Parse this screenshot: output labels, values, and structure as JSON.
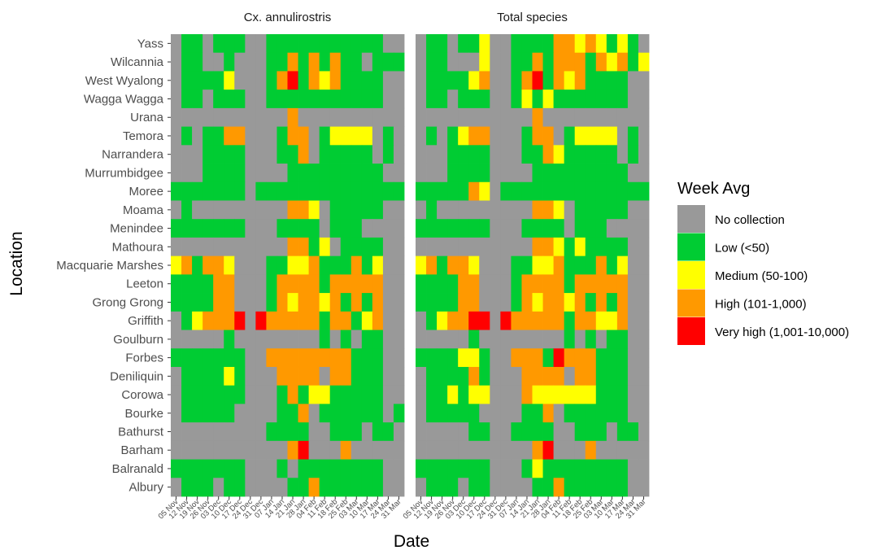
{
  "chart_data": {
    "type": "heatmap",
    "xlabel": "Date",
    "ylabel": "Location",
    "dates": [
      "05 Nov",
      "12 Nov",
      "19 Nov",
      "26 Nov",
      "03 Dec",
      "10 Dec",
      "17 Dec",
      "24 Dec",
      "31 Dec",
      "07 Jan",
      "14 Jan",
      "21 Jan",
      "28 Jan",
      "04 Feb",
      "11 Feb",
      "18 Feb",
      "25 Feb",
      "03 Mar",
      "10 Mar",
      "17 Mar",
      "24 Mar",
      "31 Mar"
    ],
    "tick_labels": [
      "05 Nov",
      "12 Nov",
      "19 Nov",
      "26 Nov",
      "03 Dec",
      "10 Dec",
      "17 Dec",
      "24 Dec",
      "31 Dec",
      "07 Jan",
      "14 Jan",
      "21 Jan",
      "28 Jan",
      "04 Feb",
      "11 Feb",
      "18 Feb",
      "25 Feb",
      "03 Mar",
      "10 Mar",
      "17 Mar",
      "24 Mar",
      "31 Mar"
    ],
    "locations": [
      "Yass",
      "Wilcannia",
      "West Wyalong",
      "Wagga Wagga",
      "Urana",
      "Temora",
      "Narrandera",
      "Murrumbidgee",
      "Moree",
      "Moama",
      "Menindee",
      "Mathoura",
      "Macquarie Marshes",
      "Leeton",
      "Grong Grong",
      "Griffith",
      "Goulburn",
      "Forbes",
      "Deniliquin",
      "Corowa",
      "Bourke",
      "Bathurst",
      "Barham",
      "Balranald",
      "Albury"
    ],
    "legend": {
      "title": "Week Avg",
      "position": "right",
      "levels": [
        {
          "code": 0,
          "label": "No collection",
          "color": "#999999"
        },
        {
          "code": 1,
          "label": "Low (<50)",
          "color": "#00cc33"
        },
        {
          "code": 2,
          "label": "Medium (50-100)",
          "color": "#ffff00"
        },
        {
          "code": 3,
          "label": "High (101-1,000)",
          "color": "#ff9900"
        },
        {
          "code": 4,
          "label": "Very high (1,001-10,000)",
          "color": "#ff0000"
        }
      ]
    },
    "panels": [
      {
        "title": "Cx. annulirostris",
        "grid": [
          [
            0,
            1,
            1,
            0,
            1,
            1,
            1,
            0,
            0,
            1,
            1,
            1,
            1,
            1,
            1,
            1,
            1,
            1,
            1,
            1,
            0,
            0
          ],
          [
            0,
            1,
            1,
            0,
            0,
            1,
            0,
            0,
            0,
            1,
            1,
            3,
            1,
            3,
            1,
            3,
            1,
            1,
            0,
            1,
            1,
            1
          ],
          [
            0,
            1,
            1,
            1,
            1,
            2,
            0,
            0,
            0,
            1,
            3,
            4,
            1,
            3,
            2,
            3,
            1,
            1,
            1,
            1,
            0,
            0
          ],
          [
            0,
            1,
            1,
            0,
            1,
            1,
            1,
            0,
            0,
            1,
            1,
            1,
            1,
            1,
            1,
            1,
            1,
            1,
            1,
            1,
            0,
            0
          ],
          [
            0,
            0,
            0,
            0,
            0,
            0,
            0,
            0,
            0,
            0,
            0,
            3,
            0,
            0,
            0,
            0,
            0,
            0,
            0,
            0,
            0,
            0
          ],
          [
            0,
            1,
            0,
            1,
            1,
            3,
            3,
            0,
            0,
            0,
            1,
            3,
            3,
            0,
            1,
            2,
            2,
            2,
            2,
            0,
            1,
            0
          ],
          [
            0,
            0,
            0,
            1,
            1,
            1,
            1,
            0,
            0,
            0,
            1,
            1,
            3,
            0,
            1,
            1,
            1,
            1,
            1,
            0,
            1,
            0
          ],
          [
            0,
            0,
            0,
            1,
            1,
            1,
            1,
            0,
            0,
            0,
            0,
            1,
            1,
            1,
            1,
            1,
            1,
            1,
            1,
            1,
            0,
            0
          ],
          [
            1,
            1,
            1,
            1,
            1,
            1,
            1,
            0,
            1,
            1,
            1,
            1,
            1,
            1,
            1,
            1,
            1,
            1,
            1,
            1,
            1,
            1
          ],
          [
            0,
            1,
            0,
            0,
            0,
            0,
            0,
            0,
            0,
            0,
            0,
            3,
            3,
            2,
            0,
            1,
            1,
            1,
            1,
            1,
            0,
            0
          ],
          [
            1,
            1,
            1,
            1,
            1,
            1,
            1,
            0,
            0,
            0,
            1,
            1,
            1,
            1,
            0,
            1,
            1,
            1,
            0,
            0,
            0,
            0
          ],
          [
            0,
            0,
            0,
            0,
            0,
            0,
            0,
            0,
            0,
            0,
            0,
            3,
            3,
            1,
            2,
            0,
            1,
            1,
            1,
            1,
            0,
            0
          ],
          [
            2,
            3,
            1,
            3,
            3,
            2,
            0,
            0,
            0,
            1,
            1,
            2,
            2,
            3,
            1,
            1,
            1,
            3,
            1,
            2,
            0,
            0
          ],
          [
            1,
            1,
            1,
            1,
            3,
            3,
            0,
            0,
            0,
            1,
            3,
            3,
            3,
            3,
            1,
            3,
            3,
            3,
            3,
            3,
            0,
            0
          ],
          [
            1,
            1,
            1,
            1,
            3,
            3,
            0,
            0,
            0,
            1,
            3,
            2,
            3,
            3,
            2,
            3,
            1,
            3,
            1,
            3,
            0,
            0
          ],
          [
            0,
            1,
            2,
            3,
            3,
            3,
            4,
            0,
            4,
            3,
            3,
            3,
            3,
            3,
            1,
            3,
            3,
            1,
            2,
            3,
            0,
            0
          ],
          [
            0,
            0,
            0,
            0,
            0,
            1,
            0,
            0,
            0,
            0,
            0,
            0,
            0,
            0,
            1,
            0,
            1,
            0,
            1,
            1,
            0,
            0
          ],
          [
            1,
            1,
            1,
            1,
            1,
            1,
            1,
            0,
            0,
            3,
            3,
            3,
            3,
            3,
            3,
            3,
            3,
            1,
            1,
            1,
            0,
            0
          ],
          [
            0,
            1,
            1,
            1,
            1,
            2,
            1,
            0,
            0,
            0,
            3,
            3,
            3,
            3,
            0,
            3,
            3,
            1,
            1,
            1,
            0,
            0
          ],
          [
            0,
            1,
            1,
            1,
            1,
            1,
            1,
            0,
            0,
            0,
            1,
            3,
            1,
            2,
            2,
            1,
            1,
            1,
            1,
            1,
            0,
            0
          ],
          [
            0,
            1,
            1,
            1,
            1,
            1,
            0,
            0,
            0,
            0,
            1,
            1,
            3,
            0,
            1,
            1,
            1,
            1,
            1,
            1,
            0,
            1
          ],
          [
            0,
            0,
            0,
            0,
            0,
            0,
            0,
            0,
            0,
            1,
            1,
            1,
            1,
            0,
            0,
            1,
            1,
            1,
            0,
            1,
            1,
            0
          ],
          [
            0,
            0,
            0,
            0,
            0,
            0,
            0,
            0,
            0,
            0,
            0,
            3,
            4,
            0,
            0,
            0,
            3,
            0,
            0,
            0,
            0,
            0
          ],
          [
            1,
            1,
            1,
            1,
            1,
            1,
            1,
            0,
            0,
            0,
            1,
            0,
            1,
            1,
            1,
            1,
            1,
            1,
            1,
            1,
            0,
            0
          ],
          [
            0,
            1,
            1,
            1,
            0,
            1,
            1,
            0,
            0,
            0,
            0,
            1,
            1,
            3,
            1,
            1,
            1,
            1,
            1,
            1,
            0,
            0
          ]
        ]
      },
      {
        "title": "Total species",
        "grid": [
          [
            0,
            1,
            1,
            0,
            1,
            1,
            2,
            0,
            0,
            1,
            1,
            1,
            1,
            3,
            3,
            2,
            3,
            2,
            1,
            2,
            1,
            0
          ],
          [
            0,
            1,
            1,
            0,
            0,
            0,
            2,
            0,
            0,
            1,
            1,
            3,
            1,
            3,
            3,
            3,
            1,
            3,
            2,
            3,
            1,
            2
          ],
          [
            0,
            1,
            1,
            1,
            1,
            2,
            3,
            0,
            0,
            1,
            3,
            4,
            1,
            3,
            2,
            3,
            1,
            1,
            1,
            1,
            0,
            0
          ],
          [
            0,
            1,
            1,
            0,
            1,
            1,
            1,
            0,
            0,
            1,
            2,
            1,
            2,
            1,
            1,
            1,
            1,
            1,
            1,
            1,
            0,
            0
          ],
          [
            0,
            0,
            0,
            0,
            0,
            0,
            0,
            0,
            0,
            0,
            0,
            3,
            0,
            0,
            0,
            0,
            0,
            0,
            0,
            0,
            0,
            0
          ],
          [
            0,
            1,
            0,
            1,
            2,
            3,
            3,
            0,
            0,
            0,
            1,
            3,
            3,
            0,
            1,
            2,
            2,
            2,
            2,
            0,
            1,
            0
          ],
          [
            0,
            0,
            0,
            1,
            1,
            1,
            1,
            0,
            0,
            0,
            1,
            1,
            3,
            2,
            1,
            1,
            1,
            1,
            1,
            0,
            1,
            0
          ],
          [
            0,
            0,
            0,
            1,
            1,
            1,
            1,
            0,
            0,
            0,
            0,
            1,
            1,
            1,
            1,
            1,
            1,
            1,
            1,
            1,
            0,
            0
          ],
          [
            1,
            1,
            1,
            1,
            1,
            3,
            2,
            0,
            1,
            1,
            1,
            1,
            1,
            1,
            1,
            1,
            1,
            1,
            1,
            1,
            1,
            1
          ],
          [
            0,
            1,
            0,
            0,
            0,
            0,
            0,
            0,
            0,
            0,
            0,
            3,
            3,
            2,
            0,
            1,
            1,
            1,
            1,
            1,
            0,
            0
          ],
          [
            1,
            1,
            1,
            1,
            1,
            1,
            1,
            0,
            0,
            0,
            1,
            1,
            1,
            1,
            0,
            1,
            1,
            1,
            0,
            0,
            0,
            0
          ],
          [
            0,
            0,
            0,
            0,
            0,
            0,
            0,
            0,
            0,
            0,
            0,
            3,
            3,
            2,
            1,
            2,
            1,
            1,
            1,
            1,
            0,
            0
          ],
          [
            2,
            3,
            1,
            3,
            3,
            2,
            0,
            0,
            0,
            1,
            1,
            2,
            2,
            3,
            1,
            1,
            1,
            3,
            1,
            2,
            0,
            0
          ],
          [
            1,
            1,
            1,
            1,
            3,
            3,
            0,
            0,
            0,
            1,
            3,
            3,
            3,
            3,
            1,
            3,
            3,
            3,
            3,
            3,
            0,
            0
          ],
          [
            1,
            1,
            1,
            1,
            3,
            3,
            0,
            0,
            0,
            1,
            3,
            2,
            3,
            3,
            2,
            3,
            1,
            3,
            1,
            3,
            0,
            0
          ],
          [
            0,
            1,
            2,
            3,
            3,
            4,
            4,
            0,
            4,
            3,
            3,
            3,
            3,
            3,
            1,
            3,
            3,
            2,
            2,
            3,
            0,
            0
          ],
          [
            0,
            0,
            0,
            0,
            0,
            1,
            0,
            0,
            0,
            0,
            0,
            0,
            0,
            0,
            1,
            0,
            1,
            0,
            1,
            1,
            0,
            0
          ],
          [
            1,
            1,
            1,
            1,
            2,
            2,
            1,
            0,
            0,
            3,
            3,
            3,
            1,
            4,
            3,
            3,
            3,
            1,
            1,
            1,
            0,
            0
          ],
          [
            0,
            1,
            1,
            1,
            1,
            3,
            1,
            0,
            0,
            0,
            3,
            3,
            3,
            3,
            0,
            3,
            3,
            1,
            1,
            1,
            0,
            0
          ],
          [
            0,
            1,
            1,
            2,
            1,
            2,
            2,
            0,
            0,
            0,
            3,
            2,
            2,
            2,
            2,
            2,
            2,
            1,
            1,
            1,
            0,
            0
          ],
          [
            0,
            1,
            1,
            1,
            1,
            1,
            0,
            0,
            0,
            0,
            1,
            1,
            3,
            0,
            1,
            1,
            1,
            1,
            1,
            1,
            0,
            0
          ],
          [
            0,
            0,
            0,
            0,
            0,
            1,
            1,
            0,
            0,
            1,
            1,
            1,
            1,
            0,
            0,
            1,
            1,
            1,
            0,
            1,
            1,
            0
          ],
          [
            0,
            0,
            0,
            0,
            0,
            0,
            0,
            0,
            0,
            0,
            0,
            3,
            4,
            0,
            0,
            0,
            3,
            0,
            0,
            0,
            0,
            0
          ],
          [
            1,
            1,
            1,
            1,
            1,
            1,
            1,
            0,
            0,
            0,
            1,
            2,
            1,
            1,
            1,
            1,
            1,
            1,
            1,
            1,
            0,
            0
          ],
          [
            0,
            1,
            1,
            1,
            0,
            1,
            1,
            0,
            0,
            0,
            0,
            1,
            1,
            3,
            1,
            1,
            1,
            1,
            1,
            1,
            0,
            0
          ]
        ]
      }
    ]
  }
}
